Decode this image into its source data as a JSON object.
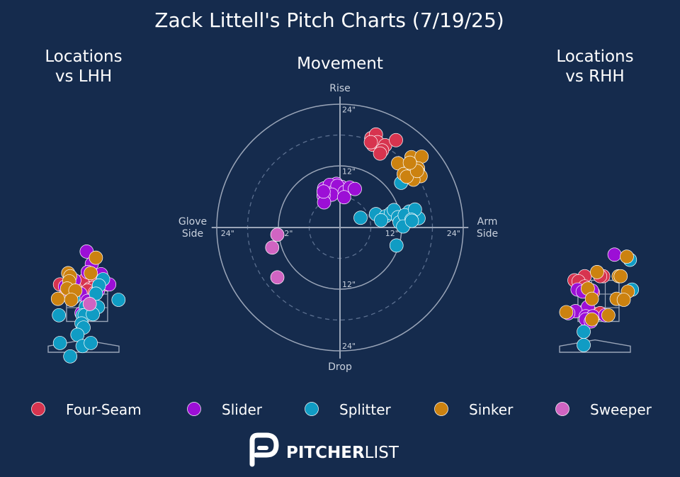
{
  "title": "Zack Littell's Pitch Charts (7/19/25)",
  "colors": {
    "background": "#152b4d",
    "Four-Seam": "#d7344f",
    "Slider": "#9c0fd6",
    "Splitter": "#109cc4",
    "Sinker": "#cc8210",
    "Sweeper": "#d064c2",
    "grid": "#9aa5b8"
  },
  "legend": [
    "Four-Seam",
    "Slider",
    "Splitter",
    "Sinker",
    "Sweeper"
  ],
  "brand": {
    "strong": "PITCHER",
    "light": "LIST"
  },
  "chart_data": [
    {
      "type": "scatter",
      "title": "Locations\nvs LHH",
      "xlabel": "",
      "ylabel": "",
      "xlim": [
        -1.6,
        1.8
      ],
      "ylim": [
        -0.9,
        5.1
      ],
      "series": [
        {
          "name": "Four-Seam",
          "points": [
            [
              0.05,
              3.5
            ],
            [
              0.5,
              3.7
            ],
            [
              -1.15,
              3.3
            ],
            [
              -0.4,
              3.1
            ],
            [
              -0.85,
              3.05
            ],
            [
              0.3,
              3.1
            ],
            [
              0.5,
              3.15
            ],
            [
              0.2,
              3.0
            ],
            [
              0.55,
              2.9
            ],
            [
              1.1,
              3.3
            ]
          ]
        },
        {
          "name": "Slider",
          "points": [
            [
              0.15,
              4.9
            ],
            [
              0.4,
              4.3
            ],
            [
              0.2,
              3.9
            ],
            [
              0.85,
              3.8
            ],
            [
              -0.45,
              3.5
            ],
            [
              -0.9,
              3.2
            ],
            [
              1.25,
              3.3
            ],
            [
              0.7,
              3.0
            ],
            [
              -0.15,
              2.85
            ],
            [
              0.2,
              2.5
            ],
            [
              -0.1,
              1.9
            ],
            [
              0.1,
              2.0
            ]
          ]
        },
        {
          "name": "Splitter",
          "points": [
            [
              0.95,
              3.55
            ],
            [
              0.75,
              3.25
            ],
            [
              0.6,
              2.85
            ],
            [
              1.7,
              2.55
            ],
            [
              0.1,
              2.2
            ],
            [
              -0.5,
              2.65
            ],
            [
              0.7,
              2.2
            ],
            [
              -1.2,
              1.8
            ],
            [
              -0.05,
              1.8
            ],
            [
              0.05,
              1.8
            ],
            [
              0.45,
              1.85
            ],
            [
              -0.1,
              1.4
            ],
            [
              0.0,
              1.2
            ],
            [
              -0.3,
              0.85
            ],
            [
              -1.15,
              0.45
            ],
            [
              -0.05,
              0.3
            ],
            [
              0.35,
              0.45
            ],
            [
              -0.65,
              -0.2
            ]
          ]
        },
        {
          "name": "Sinker",
          "points": [
            [
              0.6,
              4.6
            ],
            [
              0.35,
              3.85
            ],
            [
              -0.75,
              3.85
            ],
            [
              -0.65,
              3.7
            ],
            [
              -0.7,
              3.45
            ],
            [
              -0.8,
              3.1
            ],
            [
              -0.4,
              3.0
            ],
            [
              -1.25,
              2.6
            ],
            [
              -0.6,
              2.55
            ]
          ]
        },
        {
          "name": "Sweeper",
          "points": [
            [
              0.3,
              2.35
            ]
          ]
        }
      ]
    },
    {
      "type": "scatter",
      "title": "Movement",
      "xlabel": "",
      "ylabel": "",
      "xlim": [
        -25,
        25
      ],
      "ylim": [
        -25,
        25
      ],
      "labels": {
        "top": "Rise",
        "bottom": "Drop",
        "left": "Glove\nSide",
        "right": "Arm\nSide",
        "ring_top_12": "12\"",
        "ring_top_24": "24\"",
        "ring_bottom_12": "12\"",
        "ring_bottom_24": "24\"",
        "ring_left_12": "12\"",
        "ring_left_24": "24\"",
        "ring_right_12": "12\"",
        "ring_right_24": "24\""
      },
      "series": [
        {
          "name": "Four-Seam",
          "points": [
            [
              6.1,
              17.4
            ],
            [
              7.0,
              18.1
            ],
            [
              7.7,
              15.8
            ],
            [
              6.4,
              16.1
            ],
            [
              7.3,
              16.6
            ],
            [
              8.8,
              16.0
            ],
            [
              6.0,
              16.6
            ],
            [
              8.2,
              15.0
            ],
            [
              10.9,
              17.0
            ],
            [
              7.8,
              14.4
            ]
          ]
        },
        {
          "name": "Slider",
          "points": [
            [
              -3.1,
              7.6
            ],
            [
              -0.7,
              8.5
            ],
            [
              -2.0,
              8.3
            ],
            [
              -1.1,
              7.0
            ],
            [
              0.3,
              7.9
            ],
            [
              -0.5,
              8.1
            ],
            [
              -1.6,
              6.4
            ],
            [
              0.9,
              6.9
            ],
            [
              -3.2,
              6.2
            ],
            [
              1.9,
              7.8
            ],
            [
              2.9,
              7.5
            ],
            [
              -3.1,
              4.9
            ],
            [
              -3.2,
              7.0
            ],
            [
              0.8,
              5.9
            ]
          ]
        },
        {
          "name": "Splitter",
          "points": [
            [
              4.0,
              1.9
            ],
            [
              7.0,
              2.6
            ],
            [
              8.9,
              2.2
            ],
            [
              9.9,
              2.8
            ],
            [
              12.0,
              1.6
            ],
            [
              10.5,
              3.4
            ],
            [
              11.3,
              2.0
            ],
            [
              13.5,
              3.1
            ],
            [
              15.3,
              1.8
            ],
            [
              11.6,
              1.0
            ],
            [
              12.6,
              2.4
            ],
            [
              14.6,
              3.5
            ],
            [
              13.9,
              1.5
            ],
            [
              12.3,
              0.2
            ],
            [
              14.0,
              1.3
            ],
            [
              8.0,
              1.4
            ],
            [
              11.9,
              8.7
            ],
            [
              11.0,
              -3.5
            ]
          ]
        },
        {
          "name": "Sinker",
          "points": [
            [
              11.3,
              12.5
            ],
            [
              13.9,
              13.7
            ],
            [
              15.9,
              13.8
            ],
            [
              14.1,
              11.9
            ],
            [
              15.2,
              11.5
            ],
            [
              12.4,
              10.4
            ],
            [
              14.1,
              10.4
            ],
            [
              15.3,
              10.6
            ],
            [
              15.7,
              10.0
            ],
            [
              14.3,
              9.3
            ],
            [
              13.0,
              9.9
            ],
            [
              15.0,
              11.0
            ],
            [
              13.6,
              12.6
            ]
          ]
        },
        {
          "name": "Sweeper",
          "points": [
            [
              -12.2,
              -1.4
            ],
            [
              -13.2,
              -3.9
            ],
            [
              -12.2,
              -9.7
            ]
          ]
        }
      ]
    },
    {
      "type": "scatter",
      "title": "Locations\nvs RHH",
      "xlabel": "",
      "ylabel": "",
      "xlim": [
        -1.6,
        1.8
      ],
      "ylim": [
        -0.9,
        5.1
      ],
      "series": [
        {
          "name": "Four-Seam",
          "points": [
            [
              -0.5,
              3.7
            ],
            [
              0.4,
              3.7
            ],
            [
              0.25,
              3.7
            ],
            [
              -1.0,
              3.5
            ],
            [
              -0.8,
              3.45
            ],
            [
              -0.5,
              3.2
            ],
            [
              -0.1,
              2.9
            ],
            [
              -0.5,
              2.0
            ],
            [
              0.05,
              1.85
            ],
            [
              0.25,
              1.9
            ]
          ]
        },
        {
          "name": "Slider",
          "points": [
            [
              0.95,
              4.75
            ],
            [
              -0.15,
              3.0
            ],
            [
              -0.85,
              3.05
            ],
            [
              -0.6,
              2.95
            ],
            [
              -0.35,
              2.2
            ],
            [
              -0.95,
              2.0
            ],
            [
              -1.3,
              1.9
            ],
            [
              -0.45,
              1.75
            ],
            [
              -0.1,
              1.75
            ],
            [
              -0.45,
              1.6
            ],
            [
              0.5,
              1.8
            ],
            [
              -0.2,
              1.5
            ]
          ]
        },
        {
          "name": "Splitter",
          "points": [
            [
              1.7,
              4.5
            ],
            [
              1.8,
              3.05
            ],
            [
              -0.55,
              1.0
            ],
            [
              -0.55,
              0.35
            ]
          ]
        },
        {
          "name": "Sinker",
          "points": [
            [
              1.55,
              4.65
            ],
            [
              0.1,
              3.9
            ],
            [
              1.15,
              3.7
            ],
            [
              1.25,
              3.7
            ],
            [
              -0.35,
              3.1
            ],
            [
              1.6,
              2.95
            ],
            [
              -0.15,
              2.6
            ],
            [
              1.05,
              2.6
            ],
            [
              1.4,
              2.55
            ],
            [
              -1.4,
              1.95
            ],
            [
              0.65,
              1.8
            ],
            [
              -0.15,
              1.6
            ]
          ]
        },
        {
          "name": "Sweeper",
          "points": []
        }
      ]
    }
  ]
}
